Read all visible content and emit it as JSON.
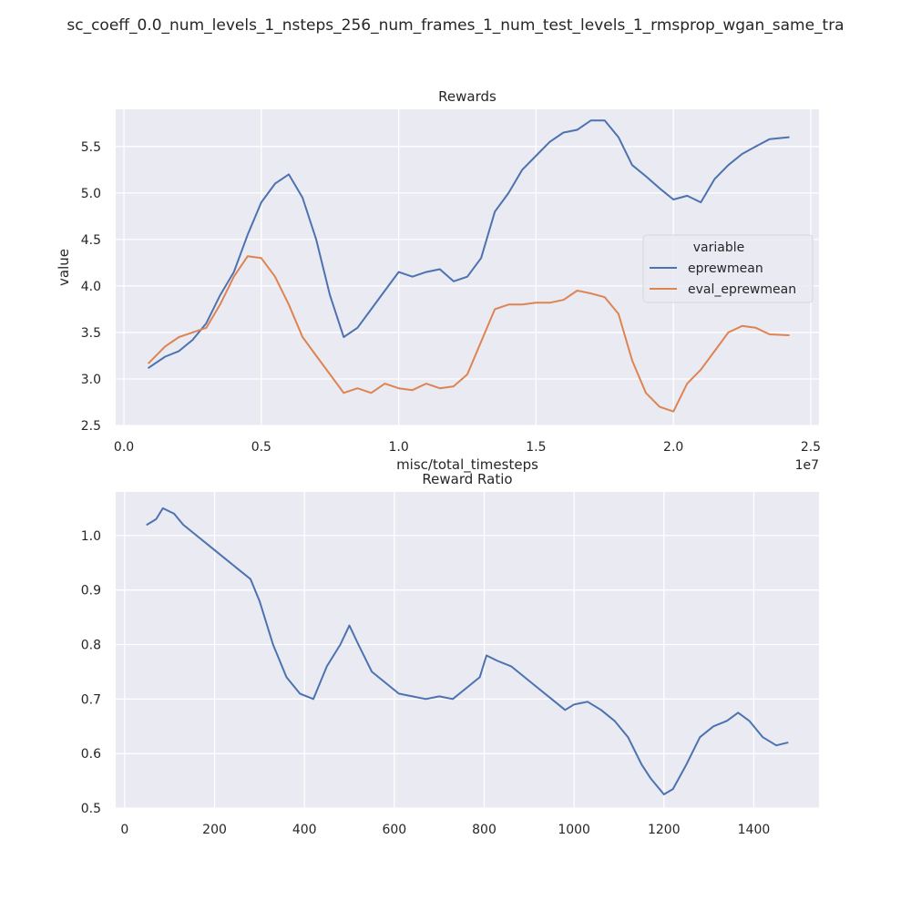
{
  "figure": {
    "suptitle": "sc_coeff_0.0_num_levels_1_nsteps_256_num_frames_1_num_test_levels_1_rmsprop_wgan_same_tra"
  },
  "chart_data": [
    {
      "type": "line",
      "title": "Rewards",
      "xlabel": "misc/total_timesteps",
      "ylabel": "value",
      "x_offset_text": "1e7",
      "xlim": [
        -0.03,
        2.53
      ],
      "ylim": [
        2.5,
        5.9
      ],
      "xticks": [
        0.0,
        0.5,
        1.0,
        1.5,
        2.0,
        2.5
      ],
      "xtick_labels": [
        "0.0",
        "0.5",
        "1.0",
        "1.5",
        "2.0",
        "2.5"
      ],
      "yticks": [
        2.5,
        3.0,
        3.5,
        4.0,
        4.5,
        5.0,
        5.5
      ],
      "ytick_labels": [
        "2.5",
        "3.0",
        "3.5",
        "4.0",
        "4.5",
        "5.0",
        "5.5"
      ],
      "grid": true,
      "legend": {
        "title": "variable",
        "placement": "center-right"
      },
      "x": [
        0.09,
        0.15,
        0.2,
        0.25,
        0.3,
        0.35,
        0.4,
        0.45,
        0.5,
        0.55,
        0.6,
        0.65,
        0.7,
        0.75,
        0.8,
        0.85,
        0.9,
        0.95,
        1.0,
        1.05,
        1.1,
        1.15,
        1.2,
        1.25,
        1.3,
        1.35,
        1.4,
        1.45,
        1.5,
        1.55,
        1.6,
        1.65,
        1.7,
        1.75,
        1.8,
        1.85,
        1.9,
        1.95,
        2.0,
        2.05,
        2.1,
        2.15,
        2.2,
        2.25,
        2.3,
        2.35,
        2.42
      ],
      "series": [
        {
          "name": "eprewmean",
          "color": "#4c72b0",
          "values": [
            3.12,
            3.24,
            3.3,
            3.42,
            3.6,
            3.9,
            4.15,
            4.55,
            4.9,
            5.1,
            5.2,
            4.95,
            4.5,
            3.9,
            3.45,
            3.55,
            3.75,
            3.95,
            4.15,
            4.1,
            4.15,
            4.18,
            4.05,
            4.1,
            4.3,
            4.8,
            5.0,
            5.25,
            5.4,
            5.55,
            5.65,
            5.68,
            5.78,
            5.78,
            5.6,
            5.3,
            5.18,
            5.05,
            4.93,
            4.97,
            4.9,
            5.15,
            5.3,
            5.42,
            5.5,
            5.58,
            5.6
          ]
        },
        {
          "name": "eval_eprewmean",
          "color": "#dd8452",
          "values": [
            3.17,
            3.35,
            3.45,
            3.5,
            3.55,
            3.8,
            4.1,
            4.32,
            4.3,
            4.1,
            3.8,
            3.45,
            3.25,
            3.05,
            2.85,
            2.9,
            2.85,
            2.95,
            2.9,
            2.88,
            2.95,
            2.9,
            2.92,
            3.05,
            3.4,
            3.75,
            3.8,
            3.8,
            3.82,
            3.82,
            3.85,
            3.95,
            3.92,
            3.88,
            3.7,
            3.2,
            2.85,
            2.7,
            2.65,
            2.95,
            3.1,
            3.3,
            3.5,
            3.57,
            3.55,
            3.48,
            3.47
          ]
        }
      ]
    },
    {
      "type": "line",
      "title": "Reward Ratio",
      "xlabel": "",
      "ylabel": "",
      "xlim": [
        -20,
        1545
      ],
      "ylim": [
        0.5,
        1.08
      ],
      "xticks": [
        0,
        200,
        400,
        600,
        800,
        1000,
        1200,
        1400
      ],
      "xtick_labels": [
        "0",
        "200",
        "400",
        "600",
        "800",
        "1000",
        "1200",
        "1400"
      ],
      "yticks": [
        0.5,
        0.6,
        0.7,
        0.8,
        0.9,
        1.0
      ],
      "ytick_labels": [
        "0.5",
        "0.6",
        "0.7",
        "0.8",
        "0.9",
        "1.0"
      ],
      "grid": true,
      "x": [
        50,
        70,
        85,
        110,
        130,
        160,
        190,
        220,
        250,
        280,
        300,
        330,
        360,
        390,
        420,
        450,
        480,
        500,
        520,
        550,
        580,
        610,
        640,
        670,
        700,
        730,
        760,
        790,
        805,
        830,
        860,
        890,
        920,
        950,
        980,
        1000,
        1030,
        1060,
        1090,
        1120,
        1150,
        1170,
        1200,
        1220,
        1250,
        1280,
        1310,
        1340,
        1365,
        1390,
        1420,
        1450,
        1475
      ],
      "series": [
        {
          "name": "",
          "color": "#4c72b0",
          "values": [
            1.02,
            1.03,
            1.05,
            1.04,
            1.02,
            1.0,
            0.98,
            0.96,
            0.94,
            0.92,
            0.88,
            0.8,
            0.74,
            0.71,
            0.7,
            0.76,
            0.8,
            0.835,
            0.8,
            0.75,
            0.73,
            0.71,
            0.705,
            0.7,
            0.705,
            0.7,
            0.72,
            0.74,
            0.78,
            0.77,
            0.76,
            0.74,
            0.72,
            0.7,
            0.68,
            0.69,
            0.695,
            0.68,
            0.66,
            0.63,
            0.58,
            0.555,
            0.525,
            0.535,
            0.58,
            0.63,
            0.65,
            0.66,
            0.675,
            0.66,
            0.63,
            0.615,
            0.62
          ]
        }
      ]
    }
  ]
}
